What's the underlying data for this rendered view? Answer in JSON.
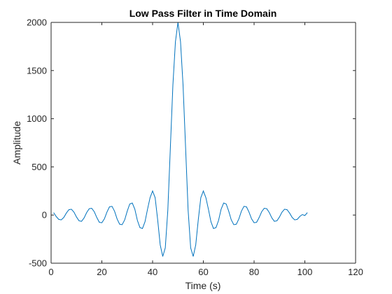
{
  "chart_data": {
    "type": "line",
    "title": "Low Pass Filter in Time Domain",
    "xlabel": "Time (s)",
    "ylabel": "Amplitude",
    "xlim": [
      0,
      120
    ],
    "ylim": [
      -500,
      2000
    ],
    "xticks": [
      "0",
      "20",
      "40",
      "60",
      "80",
      "100",
      "120"
    ],
    "yticks": [
      "-500",
      "0",
      "500",
      "1000",
      "1500",
      "2000"
    ],
    "grid": false,
    "line_color": "#0072bd",
    "series": [
      {
        "x": [
          1,
          2,
          3,
          4,
          5,
          6,
          7,
          8,
          9,
          10,
          11,
          12,
          13,
          14,
          15,
          16,
          17,
          18,
          19,
          20,
          21,
          22,
          23,
          24,
          25,
          26,
          27,
          28,
          29,
          30,
          31,
          32,
          33,
          34,
          35,
          36,
          37,
          38,
          39,
          40,
          41,
          42,
          43,
          44,
          45,
          46,
          47,
          48,
          49,
          50,
          51,
          52,
          53,
          54,
          55,
          56,
          57,
          58,
          59,
          60,
          61,
          62,
          63,
          64,
          65,
          66,
          67,
          68,
          69,
          70,
          71,
          72,
          73,
          74,
          75,
          76,
          77,
          78,
          79,
          80,
          81,
          82,
          83,
          84,
          85,
          86,
          87,
          88,
          89,
          90,
          91,
          92,
          93,
          94,
          95,
          96,
          97,
          98,
          99,
          100,
          101
        ],
        "y": [
          25,
          -15,
          -45,
          -50,
          -25,
          20,
          55,
          60,
          30,
          -20,
          -60,
          -65,
          -30,
          25,
          65,
          70,
          35,
          -25,
          -75,
          -80,
          -40,
          30,
          85,
          90,
          40,
          -40,
          -95,
          -100,
          -50,
          40,
          115,
          125,
          60,
          -55,
          -130,
          -140,
          -70,
          60,
          180,
          250,
          180,
          -50,
          -310,
          -430,
          -340,
          50,
          700,
          1350,
          1800,
          2000,
          1800,
          1350,
          700,
          50,
          -340,
          -430,
          -310,
          -50,
          180,
          250,
          180,
          60,
          -70,
          -140,
          -130,
          -55,
          60,
          125,
          115,
          40,
          -50,
          -100,
          -95,
          -40,
          40,
          90,
          85,
          30,
          -40,
          -80,
          -75,
          -25,
          35,
          70,
          65,
          25,
          -30,
          -65,
          -60,
          -20,
          30,
          60,
          55,
          20,
          -25,
          -50,
          -45,
          -15,
          5,
          -5,
          25
        ]
      }
    ]
  }
}
